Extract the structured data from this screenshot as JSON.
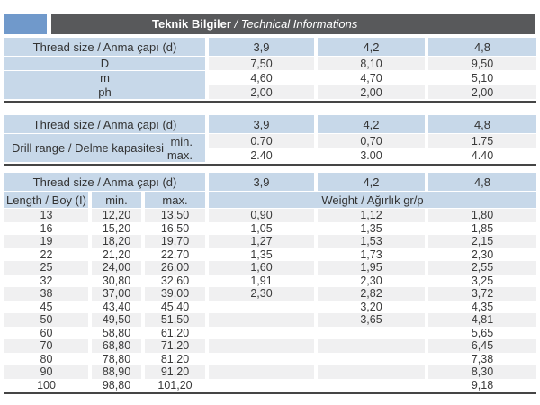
{
  "title": {
    "main": "Teknik Bilgiler",
    "rest": " / Technical Informations"
  },
  "colors": {
    "accent_blue": "#7099cb",
    "title_bar": "#58595b",
    "header_blue": "#c7d8e9",
    "stripe_gray": "#f0f0f1",
    "rule_dark": "#454545"
  },
  "table1": {
    "header_label": "Thread size / Anma çapı (d)",
    "columns": [
      "3,9",
      "4,2",
      "4,8"
    ],
    "rows": [
      {
        "label": "D",
        "v1": "7,50",
        "v2": "8,10",
        "v3": "9,50"
      },
      {
        "label": "m",
        "v1": "4,60",
        "v2": "4,70",
        "v3": "5,10"
      },
      {
        "label": "ph",
        "v1": "2,00",
        "v2": "2,00",
        "v3": "2,00"
      }
    ]
  },
  "table2": {
    "header_label": "Thread size / Anma çapı (d)",
    "columns": [
      "3,9",
      "4,2",
      "4,8"
    ],
    "row_label": "Drill range / Delme kapasitesi",
    "rows": [
      {
        "sub": "min.",
        "v1": "0.70",
        "v2": "0,70",
        "v3": "1.75"
      },
      {
        "sub": "max.",
        "v1": "2.40",
        "v2": "3.00",
        "v3": "4.40"
      }
    ]
  },
  "table3": {
    "header_label": "Thread size / Anma çapı (d)",
    "columns": [
      "3,9",
      "4,2",
      "4,8"
    ],
    "sub_headers": {
      "length": "Length / Boy (I)",
      "min": "min.",
      "max": "max.",
      "weight": "Weight / Ağırlık gr/p"
    },
    "rows": [
      {
        "length": "13",
        "min": "12,20",
        "max": "13,50",
        "w1": "0,90",
        "w2": "1,12",
        "w3": "1,80"
      },
      {
        "length": "16",
        "min": "15,20",
        "max": "16,50",
        "w1": "1,05",
        "w2": "1,35",
        "w3": "1,85"
      },
      {
        "length": "19",
        "min": "18,20",
        "max": "19,70",
        "w1": "1,27",
        "w2": "1,53",
        "w3": "2,15"
      },
      {
        "length": "22",
        "min": "21,20",
        "max": "22,70",
        "w1": "1,35",
        "w2": "1,73",
        "w3": "2,30"
      },
      {
        "length": "25",
        "min": "24,00",
        "max": "26,00",
        "w1": "1,60",
        "w2": "1,95",
        "w3": "2,55"
      },
      {
        "length": "32",
        "min": "30,80",
        "max": "32,60",
        "w1": "1,91",
        "w2": "2,30",
        "w3": "3,25"
      },
      {
        "length": "38",
        "min": "37,00",
        "max": "39,00",
        "w1": "2,30",
        "w2": "2,82",
        "w3": "3,72"
      },
      {
        "length": "45",
        "min": "43,40",
        "max": "45,40",
        "w1": "",
        "w2": "3,20",
        "w3": "4,35"
      },
      {
        "length": "50",
        "min": "49,50",
        "max": "51,50",
        "w1": "",
        "w2": "3,65",
        "w3": "4,81"
      },
      {
        "length": "60",
        "min": "58,80",
        "max": "61,20",
        "w1": "",
        "w2": "",
        "w3": "5,65"
      },
      {
        "length": "70",
        "min": "68,80",
        "max": "71,20",
        "w1": "",
        "w2": "",
        "w3": "6,45"
      },
      {
        "length": "80",
        "min": "78,80",
        "max": "81,20",
        "w1": "",
        "w2": "",
        "w3": "7,38"
      },
      {
        "length": "90",
        "min": "88,90",
        "max": "91,20",
        "w1": "",
        "w2": "",
        "w3": "8,30"
      },
      {
        "length": "100",
        "min": "98,80",
        "max": "101,20",
        "w1": "",
        "w2": "",
        "w3": "9,18"
      }
    ]
  }
}
